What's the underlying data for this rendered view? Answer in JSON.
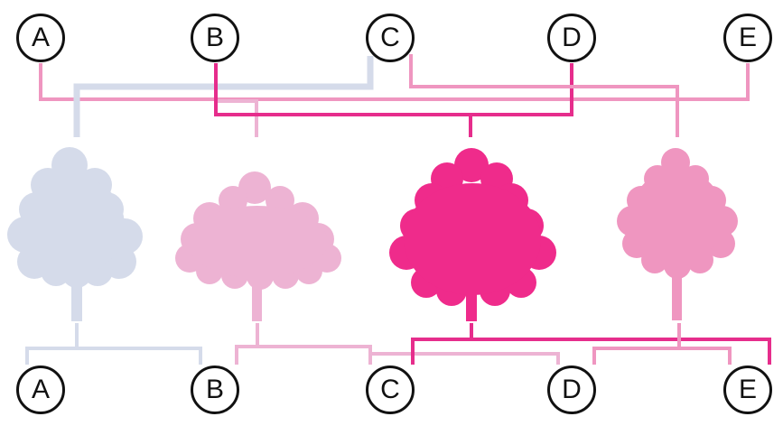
{
  "labels": {
    "top": [
      "A",
      "B",
      "C",
      "D",
      "E"
    ],
    "bottom": [
      "A",
      "B",
      "C",
      "D",
      "E"
    ]
  },
  "trees": [
    {
      "name": "tree-lavender",
      "color": "#d5dbea"
    },
    {
      "name": "tree-light-pink",
      "color": "#edb3d3"
    },
    {
      "name": "tree-hot-pink",
      "color": "#ef2b8b"
    },
    {
      "name": "tree-medium-pink",
      "color": "#ef96c0"
    }
  ],
  "connector_colors": {
    "lavender": "#d5dbea",
    "light_pink": "#edb3d3",
    "hot_pink": "#e62d8c",
    "medium_pink": "#ef96c0"
  }
}
